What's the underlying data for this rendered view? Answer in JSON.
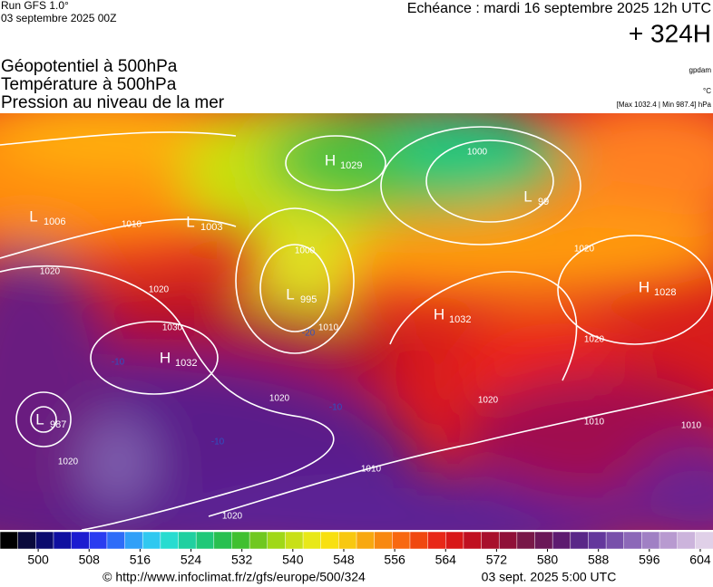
{
  "header": {
    "run": "Run GFS 1.0°",
    "run_date": "03 septembre 2025 00Z",
    "forecast": "Echéance : mardi 16 septembre 2025 12h UTC",
    "lead": "+ 324H",
    "fields": [
      "Géopotentiel à 500hPa",
      "Température à 500hPa",
      "Pression au niveau de la mer"
    ],
    "units": [
      "gpdam",
      "°C",
      "[Max 1032.4 | Min 987.4] hPa"
    ]
  },
  "map": {
    "centers": [
      {
        "letter": "L",
        "pressure": "1006"
      },
      {
        "letter": "L",
        "pressure": "1003"
      },
      {
        "letter": "H",
        "pressure": "1029"
      },
      {
        "letter": "L",
        "pressure": "99"
      },
      {
        "letter": "L",
        "pressure": "995"
      },
      {
        "letter": "H",
        "pressure": "1032"
      },
      {
        "letter": "H",
        "pressure": "1032"
      },
      {
        "letter": "H",
        "pressure": "1028"
      },
      {
        "letter": "L",
        "pressure": "987"
      }
    ],
    "isobar_labels": [
      "1020",
      "1020",
      "1030",
      "1010",
      "1000",
      "1010",
      "1000",
      "1020",
      "1020",
      "1020",
      "1020",
      "1010",
      "1020",
      "1020",
      "1010",
      "1010",
      "-10",
      "-10",
      "-20",
      "-10"
    ]
  },
  "colorbar": {
    "lim": [
      494,
      606
    ],
    "ticks": [
      500,
      508,
      516,
      524,
      532,
      540,
      548,
      556,
      564,
      572,
      580,
      588,
      596,
      604
    ],
    "colors": [
      "#000000",
      "#0a0a3c",
      "#0c0c6e",
      "#1010a0",
      "#1c1cd0",
      "#2a3cf0",
      "#2e6cf8",
      "#30a0f8",
      "#30c8f0",
      "#28dcd0",
      "#20d0a0",
      "#20c878",
      "#28c050",
      "#40c030",
      "#70c820",
      "#a0d818",
      "#c8e018",
      "#e8e818",
      "#f8e010",
      "#f8c810",
      "#f8a810",
      "#f88810",
      "#f86810",
      "#f04810",
      "#e82818",
      "#d81818",
      "#c01020",
      "#a8102c",
      "#901038",
      "#781848",
      "#6a1858",
      "#5e1c70",
      "#5a2888",
      "#64389c",
      "#7850aa",
      "#8c68b8",
      "#a080c4",
      "#b89ad0",
      "#ccb4dc",
      "#e0d0e8"
    ]
  },
  "footer": {
    "source": "© http://www.infoclimat.fr/z/gfs/europe/500/324",
    "generated": "03 sept. 2025  5:00 UTC"
  }
}
